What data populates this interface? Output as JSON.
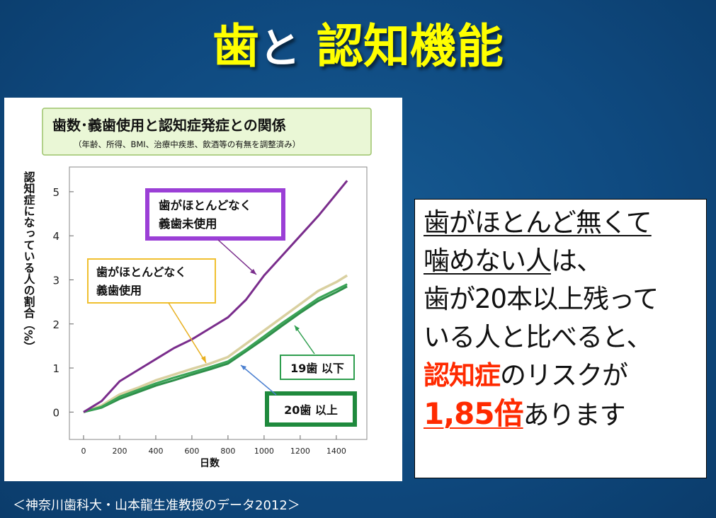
{
  "slide": {
    "title_part1": "歯",
    "title_part2": "と",
    "title_part3": "認知機能",
    "source": "＜神奈川歯科大・山本龍生准教授のデータ2012＞"
  },
  "callout": {
    "line1": "歯がほとんど無くて",
    "line2_a": "噛めない",
    "line2_b": "人",
    "line2_c": "は、",
    "line3": "歯が20本以上残って",
    "line4": "いる人と比べると、",
    "line5_a": "認知症",
    "line5_b": "のリスクが",
    "line6_a": "1,85倍",
    "line6_b": "あります"
  },
  "colors": {
    "background": "#0f4a80",
    "title_yellow": "#ffff00",
    "risk_red": "#ff2a00",
    "purple_series": "#7a2d8c",
    "beige_series": "#d9d0a0",
    "green_series": "#3aa457"
  },
  "chart_data": {
    "type": "line",
    "title": "歯数･義歯使用と認知症発症との関係",
    "subtitle": "（年齢、所得、BMI、治療中疾患、飲酒等の有無を調整済み）",
    "xlabel": "日数",
    "ylabel": "認知症になっている人の割合（%）",
    "xlim": [
      0,
      1500
    ],
    "ylim": [
      -0.3,
      5.4
    ],
    "x_ticks": [
      0,
      200,
      400,
      600,
      800,
      1000,
      1200,
      1400
    ],
    "y_ticks": [
      0,
      1,
      2,
      3,
      4,
      5
    ],
    "series": [
      {
        "name": "歯がほとんどなく義歯未使用",
        "x": [
          0,
          100,
          200,
          300,
          400,
          500,
          600,
          700,
          800,
          900,
          1000,
          1100,
          1200,
          1300,
          1400,
          1460
        ],
        "values": [
          0,
          0.25,
          0.7,
          0.95,
          1.2,
          1.45,
          1.65,
          1.9,
          2.15,
          2.55,
          3.1,
          3.55,
          4.0,
          4.45,
          4.95,
          5.25
        ]
      },
      {
        "name": "歯がほとんどなく義歯使用",
        "x": [
          0,
          100,
          200,
          300,
          400,
          500,
          600,
          700,
          800,
          900,
          1000,
          1100,
          1200,
          1300,
          1400,
          1460
        ],
        "values": [
          0,
          0.15,
          0.4,
          0.55,
          0.72,
          0.85,
          0.98,
          1.1,
          1.25,
          1.55,
          1.85,
          2.15,
          2.45,
          2.75,
          2.95,
          3.1
        ]
      },
      {
        "name": "19歯以下",
        "x": [
          0,
          100,
          200,
          300,
          400,
          500,
          600,
          700,
          800,
          900,
          1000,
          1100,
          1200,
          1300,
          1400,
          1460
        ],
        "values": [
          0,
          0.12,
          0.35,
          0.5,
          0.65,
          0.78,
          0.9,
          1.02,
          1.15,
          1.42,
          1.72,
          2.02,
          2.3,
          2.58,
          2.78,
          2.9
        ]
      },
      {
        "name": "20歯以上",
        "x": [
          0,
          100,
          200,
          300,
          400,
          500,
          600,
          700,
          800,
          900,
          1000,
          1100,
          1200,
          1300,
          1400,
          1460
        ],
        "values": [
          0,
          0.1,
          0.3,
          0.45,
          0.6,
          0.72,
          0.85,
          0.97,
          1.1,
          1.38,
          1.66,
          1.96,
          2.25,
          2.52,
          2.72,
          2.85
        ]
      }
    ],
    "labels": {
      "no_teeth_no_denture_line1": "歯がほとんどなく",
      "no_teeth_no_denture_line2": "義歯未使用",
      "no_teeth_denture_line1": "歯がほとんどなく",
      "no_teeth_denture_line2": "義歯使用",
      "teeth_19_or_less": "19歯 以下",
      "teeth_20_or_more": "20歯 以上"
    }
  }
}
